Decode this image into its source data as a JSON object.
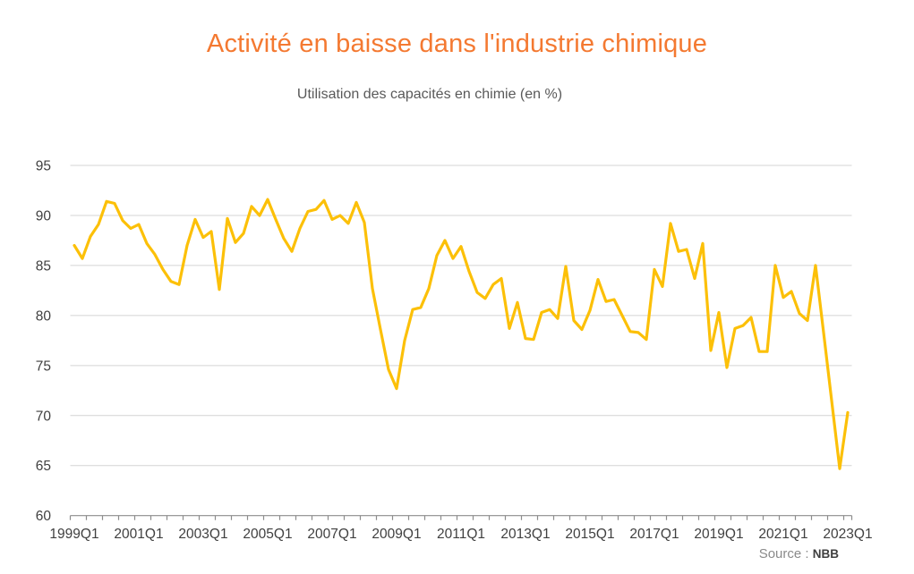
{
  "header": {
    "title": "Activité en baisse dans l'industrie chimique",
    "subtitle": "Utilisation des capacités en chimie (en %)"
  },
  "source": {
    "label": "Source",
    "separator": " : ",
    "value": "NBB"
  },
  "colors": {
    "line": "#FCC008",
    "title": "#F47931",
    "subtitle": "#595959",
    "axis_text": "#404040",
    "gridline": "#D4D4D4",
    "axis_line": "#8C8C8C",
    "source_label": "#8A8A8A",
    "source_value": "#3F3F3F"
  },
  "chart_data": {
    "type": "line",
    "title": "Activité en baisse dans l'industrie chimique",
    "subtitle": "Utilisation des capacités en chimie (en %)",
    "xlabel": "",
    "ylabel": "",
    "ylim": [
      60,
      95
    ],
    "y_ticks": [
      60,
      65,
      70,
      75,
      80,
      85,
      90,
      95
    ],
    "grid": true,
    "legend": false,
    "x_axis_labels": [
      "1999Q1",
      "2001Q1",
      "2003Q1",
      "2005Q1",
      "2007Q1",
      "2009Q1",
      "2011Q1",
      "2013Q1",
      "2015Q1",
      "2017Q1",
      "2019Q1",
      "2021Q1",
      "2023Q1"
    ],
    "x_label_interval_quarters": 8,
    "x_tick_interval_quarters": 2,
    "series": [
      {
        "name": "Utilisation des capacités en chimie (en %)",
        "quarters": [
          "1999Q1",
          "1999Q2",
          "1999Q3",
          "1999Q4",
          "2000Q1",
          "2000Q2",
          "2000Q3",
          "2000Q4",
          "2001Q1",
          "2001Q2",
          "2001Q3",
          "2001Q4",
          "2002Q1",
          "2002Q2",
          "2002Q3",
          "2002Q4",
          "2003Q1",
          "2003Q2",
          "2003Q3",
          "2003Q4",
          "2004Q1",
          "2004Q2",
          "2004Q3",
          "2004Q4",
          "2005Q1",
          "2005Q2",
          "2005Q3",
          "2005Q4",
          "2006Q1",
          "2006Q2",
          "2006Q3",
          "2006Q4",
          "2007Q1",
          "2007Q2",
          "2007Q3",
          "2007Q4",
          "2008Q1",
          "2008Q2",
          "2008Q3",
          "2008Q4",
          "2009Q1",
          "2009Q2",
          "2009Q3",
          "2009Q4",
          "2010Q1",
          "2010Q2",
          "2010Q3",
          "2010Q4",
          "2011Q1",
          "2011Q2",
          "2011Q3",
          "2011Q4",
          "2012Q1",
          "2012Q2",
          "2012Q3",
          "2012Q4",
          "2013Q1",
          "2013Q2",
          "2013Q3",
          "2013Q4",
          "2014Q1",
          "2014Q2",
          "2014Q3",
          "2014Q4",
          "2015Q1",
          "2015Q2",
          "2015Q3",
          "2015Q4",
          "2016Q1",
          "2016Q2",
          "2016Q3",
          "2016Q4",
          "2017Q1",
          "2017Q2",
          "2017Q3",
          "2017Q4",
          "2018Q1",
          "2018Q2",
          "2018Q3",
          "2018Q4",
          "2019Q1",
          "2019Q2",
          "2019Q3",
          "2019Q4",
          "2020Q1",
          "2020Q2",
          "2020Q3",
          "2020Q4",
          "2021Q1",
          "2021Q2",
          "2021Q3",
          "2021Q4",
          "2022Q1",
          "2022Q2",
          "2022Q3",
          "2022Q4",
          "2023Q1"
        ],
        "values": [
          87.0,
          85.7,
          87.9,
          89.1,
          91.4,
          91.2,
          89.5,
          88.7,
          89.1,
          87.2,
          86.1,
          84.6,
          83.4,
          83.1,
          87.0,
          89.6,
          87.8,
          88.4,
          82.6,
          89.7,
          87.3,
          88.2,
          90.9,
          90.0,
          91.6,
          89.6,
          87.7,
          86.4,
          88.7,
          90.4,
          90.6,
          91.5,
          89.6,
          90.0,
          89.2,
          91.3,
          89.3,
          82.7,
          78.6,
          74.6,
          72.7,
          77.5,
          80.6,
          80.8,
          82.7,
          86.0,
          87.5,
          85.7,
          86.9,
          84.4,
          82.3,
          81.7,
          83.1,
          83.7,
          78.7,
          81.3,
          77.7,
          77.6,
          80.3,
          80.6,
          79.7,
          84.9,
          79.5,
          78.6,
          80.5,
          83.6,
          81.4,
          81.6,
          80.0,
          78.4,
          78.3,
          77.6,
          84.6,
          82.9,
          89.2,
          86.4,
          86.6,
          83.7,
          87.2,
          76.5,
          80.3,
          74.8,
          78.7,
          79.0,
          79.8,
          76.4,
          76.4,
          85.0,
          81.8,
          82.4,
          80.2,
          79.5,
          85.0,
          78.3,
          71.5,
          64.7,
          70.3
        ]
      }
    ]
  }
}
